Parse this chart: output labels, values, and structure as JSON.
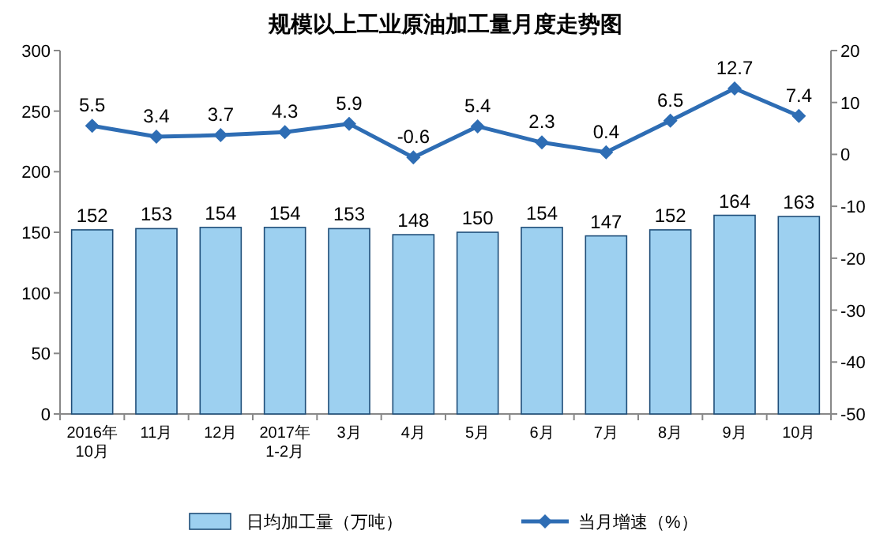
{
  "chart_data": {
    "type": "bar",
    "title": "规模以上工业原油加工量月度走势图",
    "categories": [
      "2016年\n10月",
      "11月",
      "12月",
      "2017年\n1-2月",
      "3月",
      "4月",
      "5月",
      "6月",
      "7月",
      "8月",
      "9月",
      "10月"
    ],
    "series": [
      {
        "name": "日均加工量（万吨）",
        "color": "#9dd0f0",
        "values": [
          152,
          153,
          154,
          154,
          153,
          148,
          150,
          154,
          147,
          152,
          164,
          163
        ]
      },
      {
        "name": "当月增速（%）",
        "type": "line",
        "axis": "y2",
        "color": "#2e6db4",
        "marker": "diamond",
        "values": [
          5.5,
          3.4,
          3.7,
          4.3,
          5.9,
          -0.6,
          5.4,
          2.3,
          0.4,
          6.5,
          12.7,
          7.4
        ]
      }
    ],
    "ylim": [
      0,
      300
    ],
    "yticks": [
      0,
      50,
      100,
      150,
      200,
      250,
      300
    ],
    "y2lim": [
      -50,
      20
    ],
    "y2ticks": [
      -50,
      -40,
      -30,
      -20,
      -10,
      0,
      10,
      20
    ],
    "data_labels": true,
    "legend": "bottom"
  }
}
